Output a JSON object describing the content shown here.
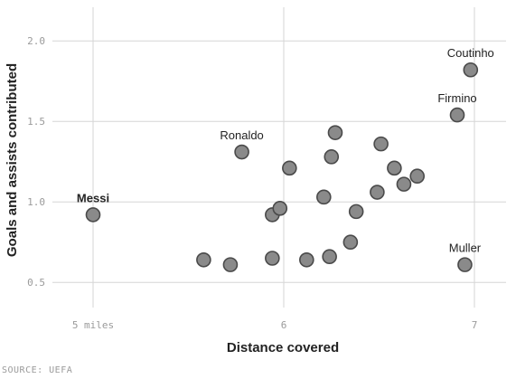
{
  "chart_data": {
    "type": "scatter",
    "xlabel": "Distance covered",
    "ylabel": "Goals and assists contributed",
    "xlim": [
      5,
      7
    ],
    "ylim": [
      0.3,
      2.15
    ],
    "x_ticks": [
      {
        "value": 5,
        "label": "5 miles"
      },
      {
        "value": 6,
        "label": "6"
      },
      {
        "value": 7,
        "label": "7"
      }
    ],
    "y_ticks": [
      {
        "value": 0.5,
        "label": "0.5"
      },
      {
        "value": 1.0,
        "label": "1.0"
      },
      {
        "value": 1.5,
        "label": "1.5"
      },
      {
        "value": 2.0,
        "label": "2.0"
      }
    ],
    "grid": true,
    "point_color": "#8a8a8a",
    "source": "SOURCE: UEFA",
    "points": [
      {
        "x": 5.0,
        "y": 0.92,
        "label": "Messi",
        "bold": true
      },
      {
        "x": 5.58,
        "y": 0.64
      },
      {
        "x": 5.72,
        "y": 0.61
      },
      {
        "x": 5.78,
        "y": 1.31,
        "label": "Ronaldo"
      },
      {
        "x": 5.94,
        "y": 0.65
      },
      {
        "x": 5.94,
        "y": 0.92
      },
      {
        "x": 5.98,
        "y": 0.96
      },
      {
        "x": 6.03,
        "y": 1.21
      },
      {
        "x": 6.12,
        "y": 0.64
      },
      {
        "x": 6.21,
        "y": 1.03
      },
      {
        "x": 6.24,
        "y": 0.66
      },
      {
        "x": 6.25,
        "y": 1.28
      },
      {
        "x": 6.27,
        "y": 1.43
      },
      {
        "x": 6.35,
        "y": 0.75
      },
      {
        "x": 6.38,
        "y": 0.94
      },
      {
        "x": 6.49,
        "y": 1.06
      },
      {
        "x": 6.51,
        "y": 1.36
      },
      {
        "x": 6.58,
        "y": 1.21
      },
      {
        "x": 6.63,
        "y": 1.11
      },
      {
        "x": 6.7,
        "y": 1.16
      },
      {
        "x": 6.91,
        "y": 1.54,
        "label": "Firmino"
      },
      {
        "x": 6.95,
        "y": 0.61,
        "label": "Muller"
      },
      {
        "x": 6.98,
        "y": 1.82,
        "label": "Coutinho"
      }
    ]
  }
}
